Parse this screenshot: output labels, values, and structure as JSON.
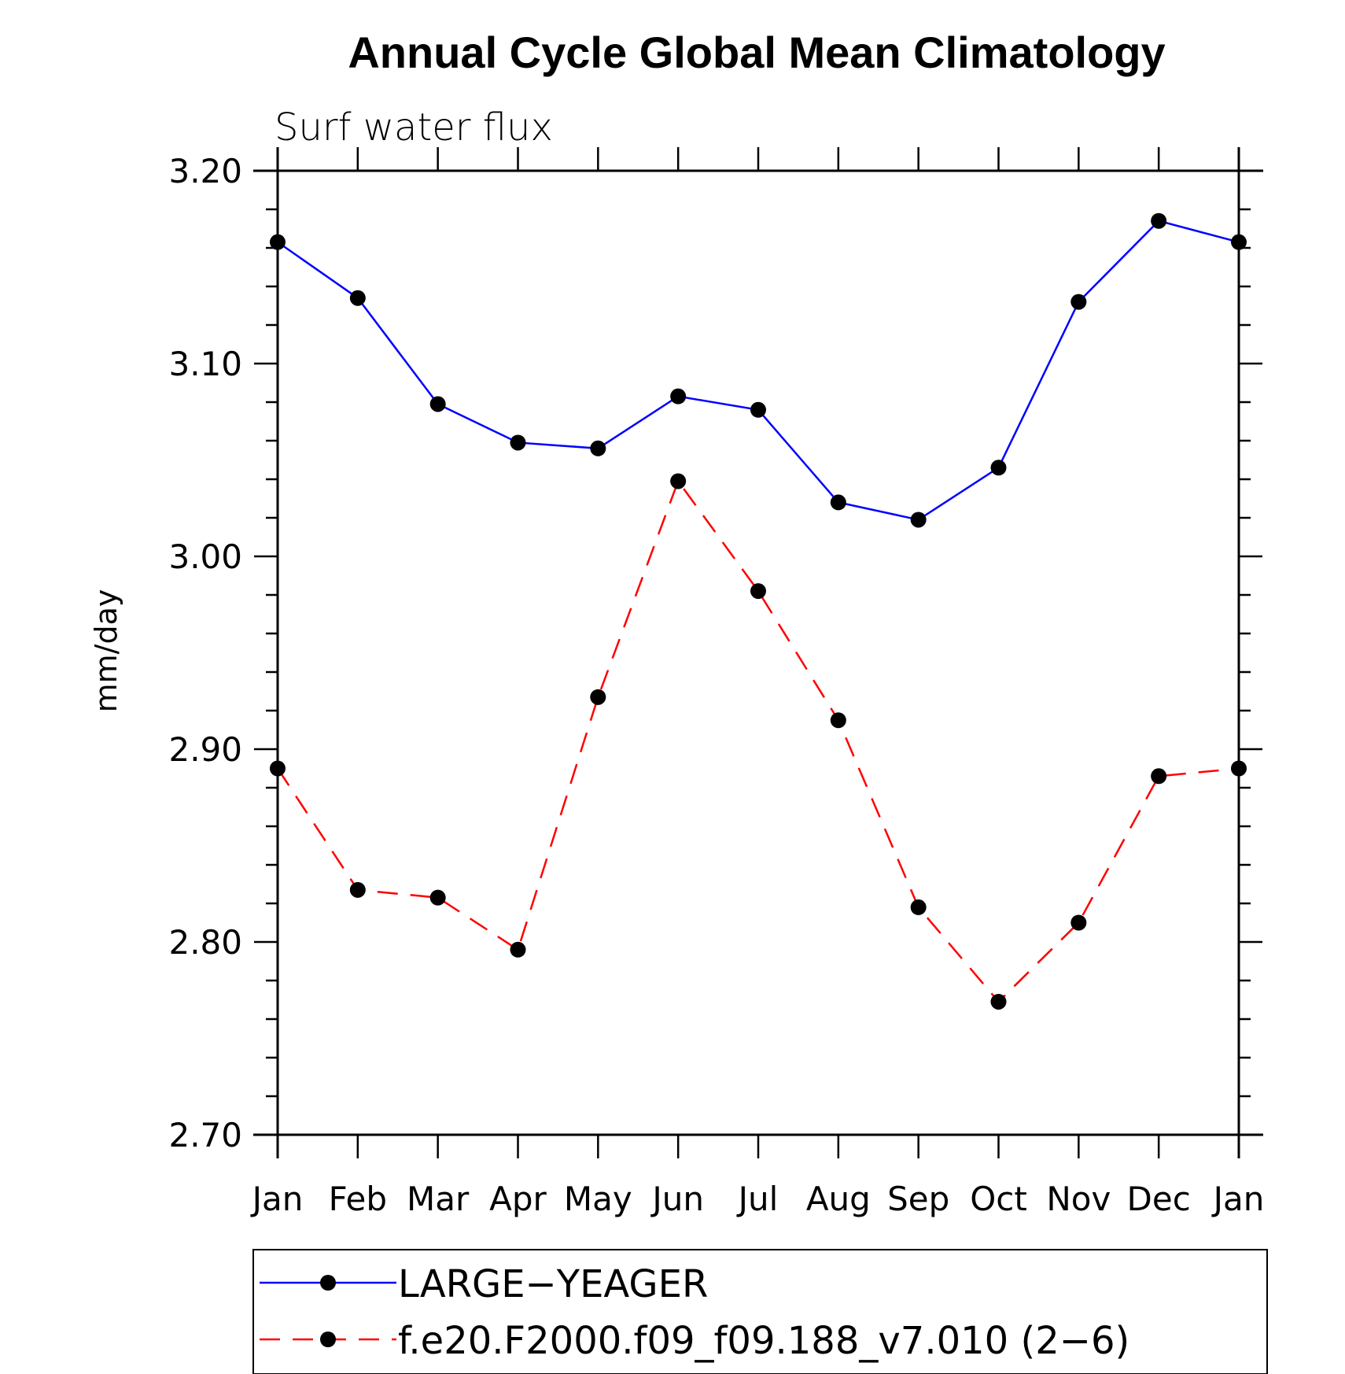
{
  "chart_data": {
    "type": "line",
    "title": "Annual Cycle Global Mean Climatology",
    "subtitle": "Surf water flux",
    "xlabel": "",
    "ylabel": "mm/day",
    "categories": [
      "Jan",
      "Feb",
      "Mar",
      "Apr",
      "May",
      "Jun",
      "Jul",
      "Aug",
      "Sep",
      "Oct",
      "Nov",
      "Dec",
      "Jan"
    ],
    "ylim": [
      2.7,
      3.2
    ],
    "yticks": [
      "2.70",
      "2.80",
      "2.90",
      "3.00",
      "3.10",
      "3.20"
    ],
    "ytick_values": [
      2.7,
      2.8,
      2.9,
      3.0,
      3.1,
      3.2
    ],
    "grid": false,
    "legend_position": "bottom",
    "series": [
      {
        "name": "LARGE−YEAGER",
        "color": "#0000ff",
        "line_style": "solid",
        "marker": "circle",
        "values": [
          3.163,
          3.134,
          3.079,
          3.059,
          3.056,
          3.083,
          3.076,
          3.028,
          3.019,
          3.046,
          3.132,
          3.174,
          3.163
        ]
      },
      {
        "name": "f.e20.F2000.f09_f09.188_v7.010 (2−6)",
        "color": "#ff0000",
        "line_style": "dashed",
        "marker": "circle",
        "values": [
          2.89,
          2.827,
          2.823,
          2.796,
          2.927,
          3.039,
          2.982,
          2.915,
          2.818,
          2.769,
          2.81,
          2.886,
          2.89
        ]
      }
    ]
  }
}
